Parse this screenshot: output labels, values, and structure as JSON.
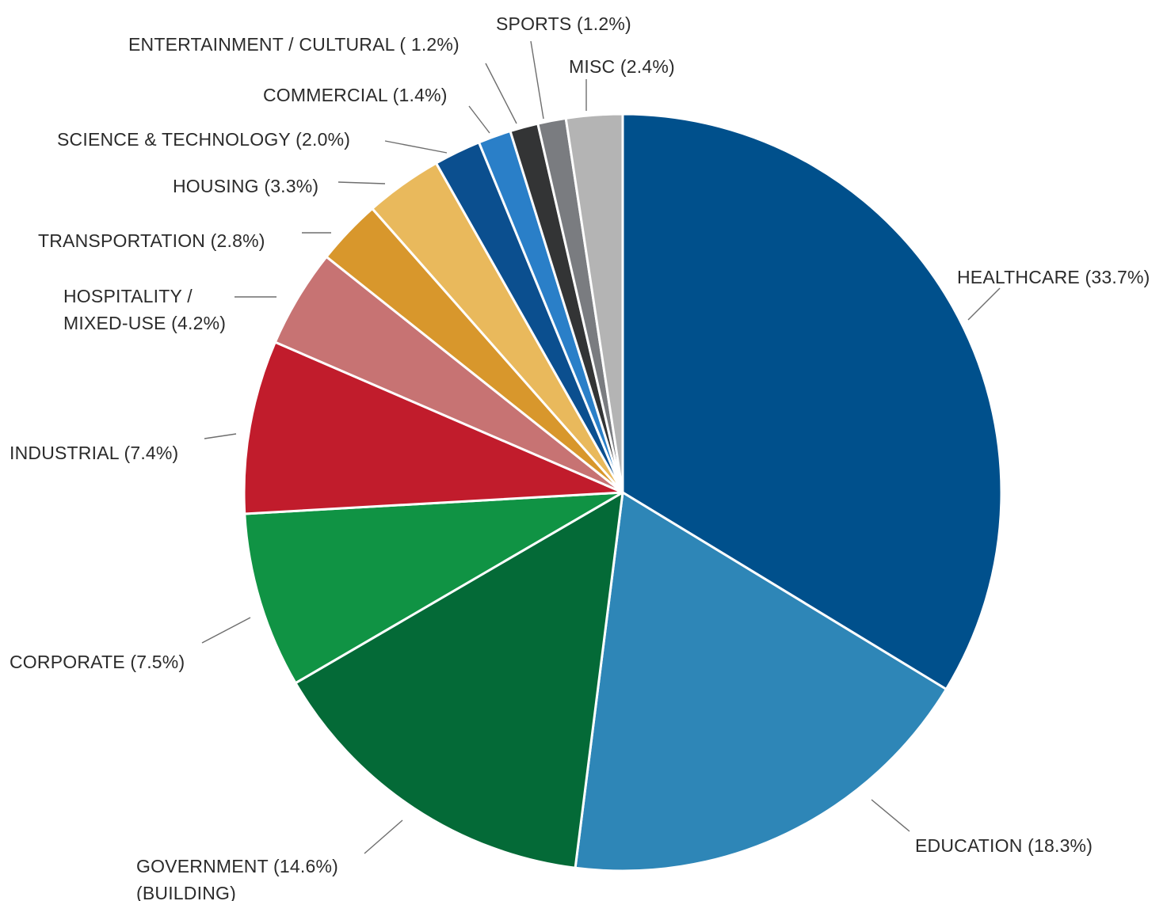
{
  "chart_data": {
    "type": "pie",
    "title": "",
    "start_angle_deg": 0,
    "direction": "clockwise",
    "slices": [
      {
        "key": "healthcare",
        "label_lines": [
          "HEALTHCARE (33.7%)"
        ],
        "value": 33.7,
        "color": "#00508c"
      },
      {
        "key": "education",
        "label_lines": [
          "EDUCATION (18.3%)"
        ],
        "value": 18.3,
        "color": "#2e86b7"
      },
      {
        "key": "government",
        "label_lines": [
          "GOVERNMENT (14.6%)",
          "(BUILDING)"
        ],
        "value": 14.6,
        "color": "#046a37"
      },
      {
        "key": "corporate",
        "label_lines": [
          "CORPORATE (7.5%)"
        ],
        "value": 7.5,
        "color": "#109344"
      },
      {
        "key": "industrial",
        "label_lines": [
          "INDUSTRIAL (7.4%)"
        ],
        "value": 7.4,
        "color": "#c11c2c"
      },
      {
        "key": "hospitality",
        "label_lines": [
          "HOSPITALITY /",
          "MIXED-USE (4.2%)"
        ],
        "value": 4.2,
        "color": "#c77373"
      },
      {
        "key": "transportation",
        "label_lines": [
          "TRANSPORTATION (2.8%)"
        ],
        "value": 2.8,
        "color": "#d8972c"
      },
      {
        "key": "housing",
        "label_lines": [
          "HOUSING (3.3%)"
        ],
        "value": 3.3,
        "color": "#e9b95c"
      },
      {
        "key": "science",
        "label_lines": [
          "SCIENCE & TECHNOLOGY (2.0%)"
        ],
        "value": 2.0,
        "color": "#0b4f8f"
      },
      {
        "key": "commercial",
        "label_lines": [
          "COMMERCIAL (1.4%)"
        ],
        "value": 1.4,
        "color": "#2a7fc8"
      },
      {
        "key": "entertainment",
        "label_lines": [
          "ENTERTAINMENT / CULTURAL ( 1.2%)"
        ],
        "value": 1.2,
        "color": "#333435"
      },
      {
        "key": "sports",
        "label_lines": [
          "SPORTS (1.2%)"
        ],
        "value": 1.2,
        "color": "#7a7c80"
      },
      {
        "key": "misc",
        "label_lines": [
          "MISC (2.4%)"
        ],
        "value": 2.4,
        "color": "#b4b4b4"
      }
    ]
  }
}
